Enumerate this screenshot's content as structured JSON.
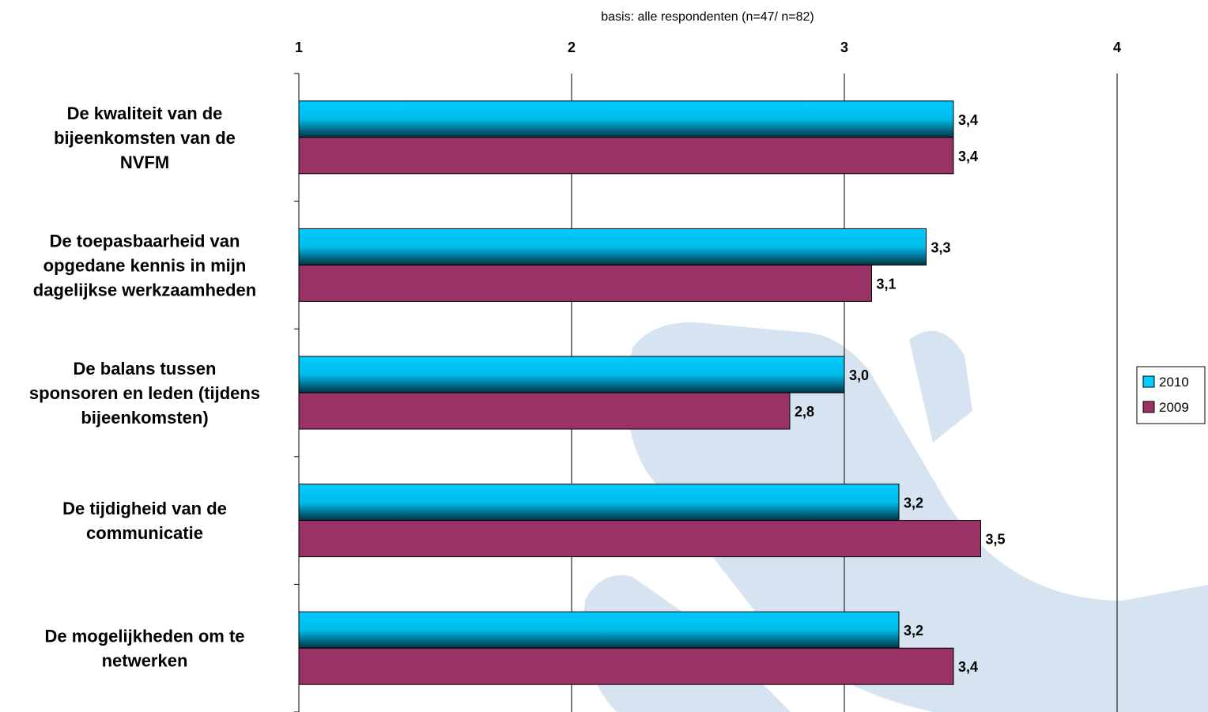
{
  "chart_data": {
    "type": "bar",
    "orientation": "horizontal",
    "subtitle": "basis: alle respondenten (n=47/ n=82)",
    "categories": [
      [
        "De kwaliteit van de",
        "bijeenkomsten van de",
        "NVFM"
      ],
      [
        "De toepasbaarheid van",
        "opgedane kennis in mijn",
        "dagelijkse werkzaamheden"
      ],
      [
        "De balans tussen",
        "sponsoren en leden (tijdens",
        "bijeenkomsten)"
      ],
      [
        "De tijdigheid van de",
        "communicatie"
      ],
      [
        "De mogelijkheden om te",
        "netwerken"
      ]
    ],
    "series": [
      {
        "name": "2010",
        "color": "#00CCFF",
        "values": [
          3.4,
          3.3,
          3.0,
          3.2,
          3.2
        ],
        "labels": [
          "3,4",
          "3,3",
          "3,0",
          "3,2",
          "3,2"
        ]
      },
      {
        "name": "2009",
        "color": "#993366",
        "values": [
          3.4,
          3.1,
          2.8,
          3.5,
          3.4
        ],
        "labels": [
          "3,4",
          "3,1",
          "2,8",
          "3,5",
          "3,4"
        ]
      }
    ],
    "xlim": [
      1,
      4
    ],
    "xticks": [
      1,
      2,
      3,
      4
    ],
    "xtick_labels": [
      "1",
      "2",
      "3",
      "4"
    ],
    "axis_position": "top",
    "grid": true,
    "legend_position": "right"
  }
}
